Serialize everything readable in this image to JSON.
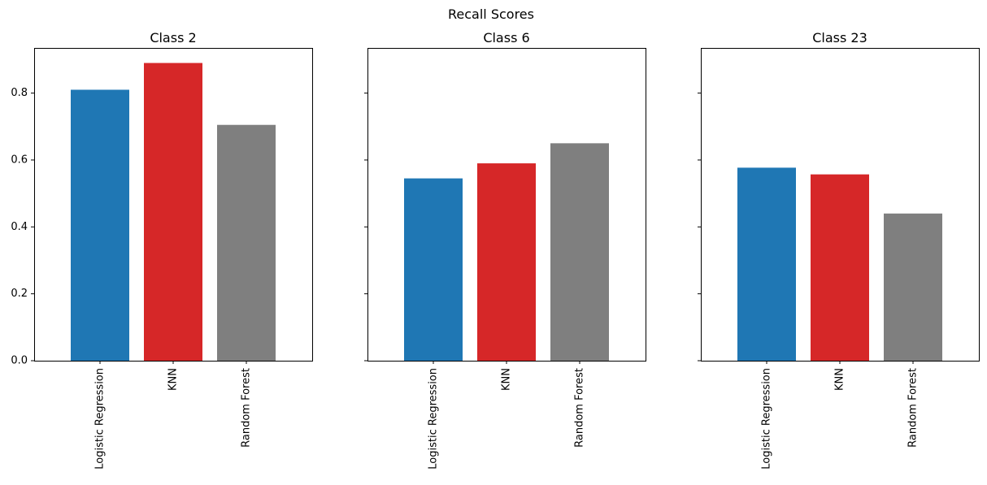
{
  "chart_data": {
    "type": "bar",
    "title": "Recall Scores",
    "sharey": true,
    "ylim": [
      0,
      0.935
    ],
    "yticks": [
      0.0,
      0.2,
      0.4,
      0.6,
      0.8
    ],
    "ytick_labels": [
      "0.0",
      "0.2",
      "0.4",
      "0.6",
      "0.8"
    ],
    "grid": false,
    "categories": [
      "Logistic Regression",
      "KNN",
      "Random Forest"
    ],
    "colors": [
      "#1f77b4",
      "#d62728",
      "#7f7f7f"
    ],
    "panels": [
      {
        "title": "Class 2",
        "values": [
          0.81,
          0.89,
          0.705
        ]
      },
      {
        "title": "Class 6",
        "values": [
          0.545,
          0.59,
          0.65
        ]
      },
      {
        "title": "Class 23",
        "values": [
          0.577,
          0.557,
          0.44
        ]
      }
    ]
  }
}
